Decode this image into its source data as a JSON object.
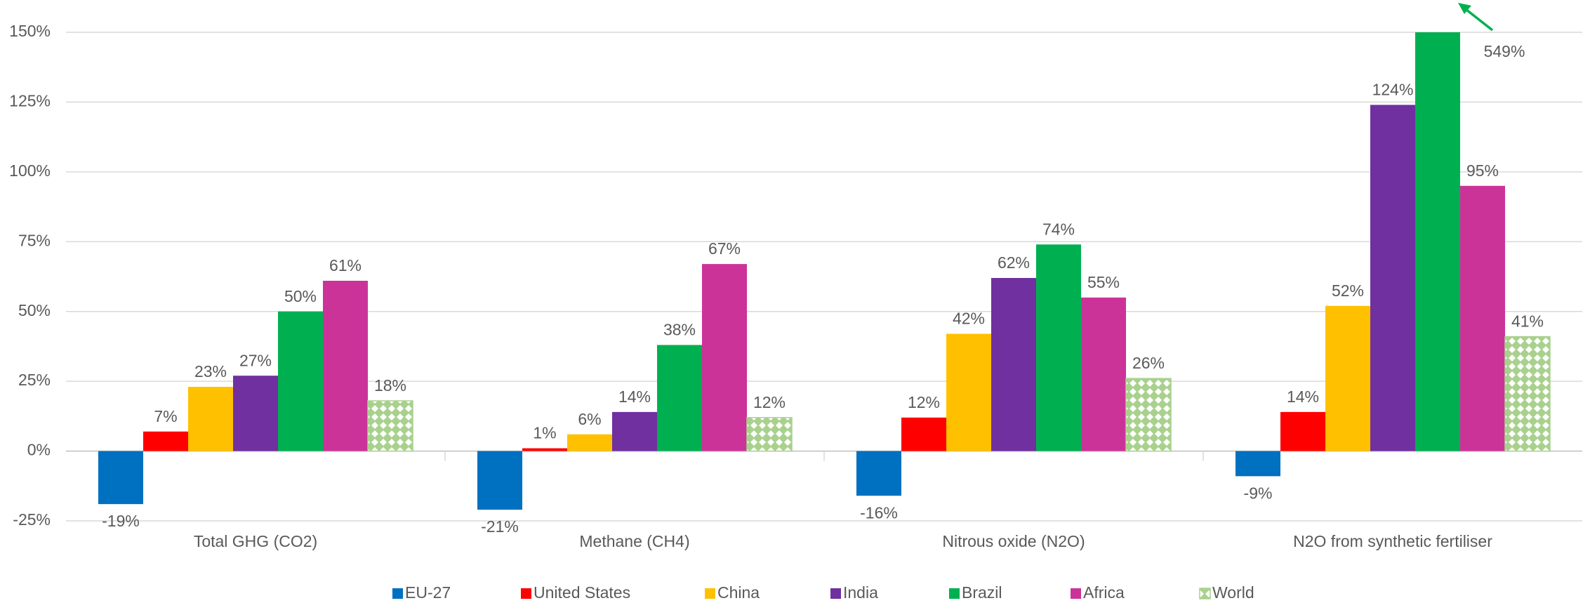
{
  "chart_data": {
    "type": "bar",
    "categories": [
      "Total GHG (CO2)",
      "Methane (CH4)",
      "Nitrous oxide (N2O)",
      "N2O from synthetic fertiliser"
    ],
    "series": [
      {
        "name": "EU-27",
        "color": "#0070c0",
        "values": [
          -19,
          -21,
          -16,
          -9
        ],
        "value_labels": [
          "-19%",
          "-21%",
          "-16%",
          "-9%"
        ]
      },
      {
        "name": "United States",
        "color": "#ff0000",
        "values": [
          7,
          1,
          12,
          14
        ],
        "value_labels": [
          "7%",
          "1%",
          "12%",
          "14%"
        ]
      },
      {
        "name": "China",
        "color": "#ffc000",
        "values": [
          23,
          6,
          42,
          52
        ],
        "value_labels": [
          "23%",
          "6%",
          "42%",
          "52%"
        ]
      },
      {
        "name": "India",
        "color": "#7030a0",
        "values": [
          27,
          14,
          62,
          124
        ],
        "value_labels": [
          "27%",
          "14%",
          "62%",
          "124%"
        ]
      },
      {
        "name": "Brazil",
        "color": "#00b050",
        "values": [
          50,
          38,
          74,
          549
        ],
        "value_labels": [
          "50%",
          "38%",
          "74%",
          "549%"
        ]
      },
      {
        "name": "Africa",
        "color": "#cc3399",
        "values": [
          61,
          67,
          55,
          95
        ],
        "value_labels": [
          "61%",
          "67%",
          "55%",
          "95%"
        ]
      },
      {
        "name": "World",
        "color": "#a9d18e",
        "pattern": true,
        "values": [
          18,
          12,
          26,
          41
        ],
        "value_labels": [
          "18%",
          "12%",
          "26%",
          "41%"
        ]
      }
    ],
    "ylim": [
      -25,
      150
    ],
    "yticks": [
      {
        "value": -25,
        "label": "-25%"
      },
      {
        "value": 0,
        "label": "0%"
      },
      {
        "value": 25,
        "label": "25%"
      },
      {
        "value": 50,
        "label": "50%"
      },
      {
        "value": 75,
        "label": "75%"
      },
      {
        "value": 100,
        "label": "100%"
      },
      {
        "value": 125,
        "label": "125%"
      },
      {
        "value": 150,
        "label": "150%"
      }
    ],
    "grid": true,
    "legend": "bottom"
  }
}
